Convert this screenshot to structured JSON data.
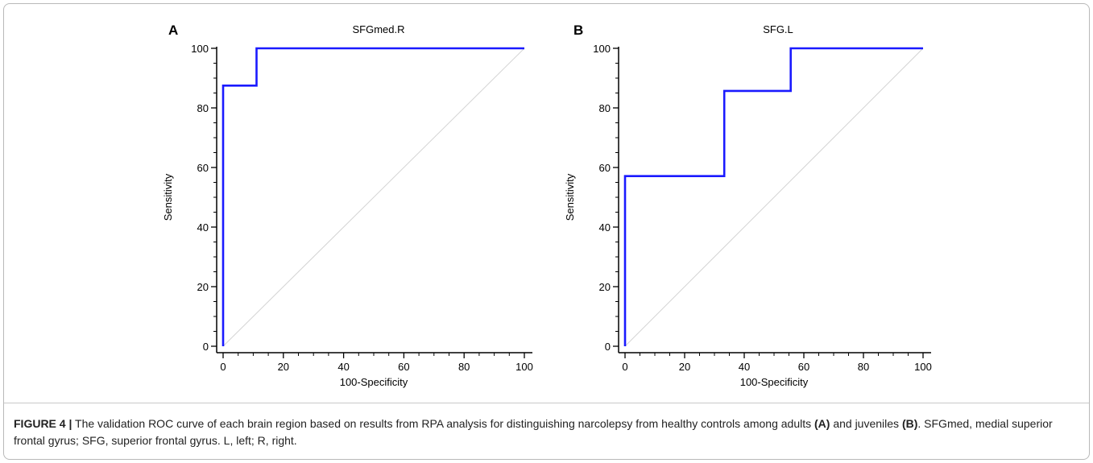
{
  "chart_data": [
    {
      "type": "line",
      "panel_label": "A",
      "title": "SFGmed.R",
      "xlabel": "100-Specificity",
      "ylabel": "Sensitivity",
      "xlim": [
        0,
        100
      ],
      "ylim": [
        0,
        100
      ],
      "xticks": [
        0,
        20,
        40,
        60,
        80,
        100
      ],
      "yticks": [
        0,
        20,
        40,
        60,
        80,
        100
      ],
      "grid": false,
      "series": [
        {
          "x": [
            0,
            0,
            11.1,
            11.1,
            100
          ],
          "y": [
            0,
            87.5,
            87.5,
            100,
            100
          ],
          "color": "#1a1aff"
        },
        {
          "x": [
            0,
            100
          ],
          "y": [
            0,
            100
          ],
          "color": "#d4d4d4"
        }
      ]
    },
    {
      "type": "line",
      "panel_label": "B",
      "title": "SFG.L",
      "xlabel": "100-Specificity",
      "ylabel": "Sensitivity",
      "xlim": [
        0,
        100
      ],
      "ylim": [
        0,
        100
      ],
      "xticks": [
        0,
        20,
        40,
        60,
        80,
        100
      ],
      "yticks": [
        0,
        20,
        40,
        60,
        80,
        100
      ],
      "grid": false,
      "series": [
        {
          "x": [
            0,
            0,
            33.3,
            33.3,
            55.6,
            55.6,
            100
          ],
          "y": [
            0,
            57.1,
            57.1,
            85.7,
            85.7,
            100,
            100
          ],
          "color": "#1a1aff"
        },
        {
          "x": [
            0,
            100
          ],
          "y": [
            0,
            100
          ],
          "color": "#d4d4d4"
        }
      ]
    }
  ],
  "caption": {
    "label": "FIGURE 4 |",
    "text_1": " The validation ROC curve of each brain region based on results from RPA analysis for distinguishing narcolepsy from healthy controls among adults ",
    "ref_a": "(A)",
    "text_2": " and juveniles ",
    "ref_b": "(B)",
    "text_3": ". SFGmed, medial superior frontal gyrus; SFG, superior frontal gyrus. L, left; R, right."
  }
}
